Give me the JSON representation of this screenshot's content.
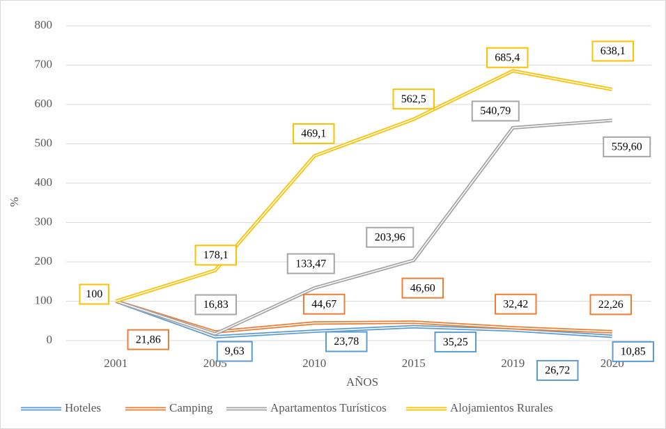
{
  "chart_data": {
    "type": "line",
    "categories": [
      "2001",
      "2005",
      "2010",
      "2015",
      "2019",
      "2020"
    ],
    "x_label": "AÑOS",
    "y_label": "%",
    "ylim": [
      0,
      800
    ],
    "yticks": [
      0,
      100,
      200,
      300,
      400,
      500,
      600,
      700,
      800
    ],
    "grid": true,
    "legend": "bottom",
    "series": [
      {
        "name": "Hoteles",
        "color": "#5b9bd5",
        "values": [
          100,
          9.63,
          23.78,
          35.25,
          26.72,
          10.85
        ],
        "value_labels": [
          null,
          "9,63",
          "23,78",
          "35,25",
          "26,72",
          "10,85"
        ]
      },
      {
        "name": "Camping",
        "color": "#ed7d31",
        "values": [
          100,
          21.86,
          44.67,
          46.6,
          32.42,
          22.26
        ],
        "value_labels": [
          null,
          "21,86",
          "44,67",
          "46,60",
          "32,42",
          "22,26"
        ]
      },
      {
        "name": "Apartamentos Turísticos",
        "color": "#a5a5a5",
        "values": [
          100,
          16.83,
          133.47,
          203.96,
          540.79,
          559.6
        ],
        "value_labels": [
          null,
          "16,83",
          "133,47",
          "203,96",
          "540,79",
          "559,60"
        ]
      },
      {
        "name": "Alojamientos Rurales",
        "color": "#ffc000",
        "values": [
          100,
          178.1,
          469.1,
          562.5,
          685.4,
          638.1
        ],
        "value_labels": [
          "100",
          "178,1",
          "469,1",
          "562,5",
          "685,4",
          "638,1"
        ]
      }
    ]
  }
}
